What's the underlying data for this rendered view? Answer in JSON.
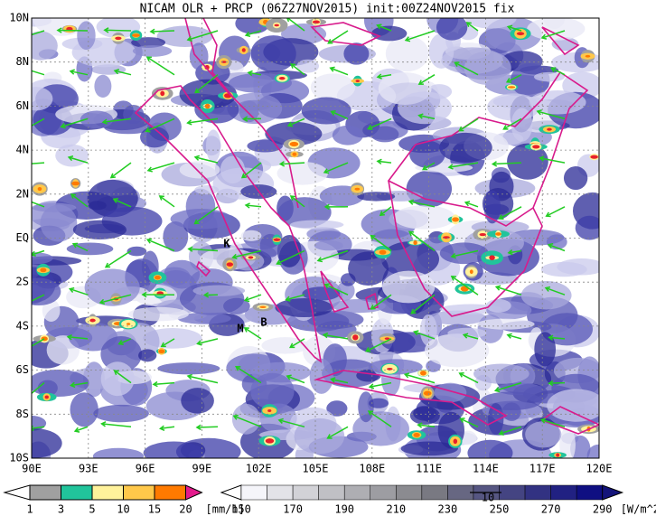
{
  "title": "NICAM OLR + PRCP (06Z27NOV2015) init:00Z24NOV2015 fix",
  "map": {
    "lat_labels": [
      "10N",
      "8N",
      "6N",
      "4N",
      "2N",
      "EQ",
      "2S",
      "4S",
      "6S",
      "8S",
      "10S"
    ],
    "lon_labels": [
      "90E",
      "93E",
      "96E",
      "99E",
      "102E",
      "105E",
      "108E",
      "111E",
      "114E",
      "117E",
      "120E"
    ],
    "sites": [
      {
        "label": "K"
      },
      {
        "label": "M"
      },
      {
        "label": "B"
      }
    ]
  },
  "precip_legend": {
    "labels": [
      "1",
      "3",
      "5",
      "10",
      "15",
      "20"
    ],
    "unit": "[mm/h]"
  },
  "olr_legend": {
    "labels": [
      "150",
      "170",
      "190",
      "210",
      "230",
      "250",
      "270",
      "290"
    ],
    "unit": "[W/m^2]",
    "vector_label": "10"
  }
}
